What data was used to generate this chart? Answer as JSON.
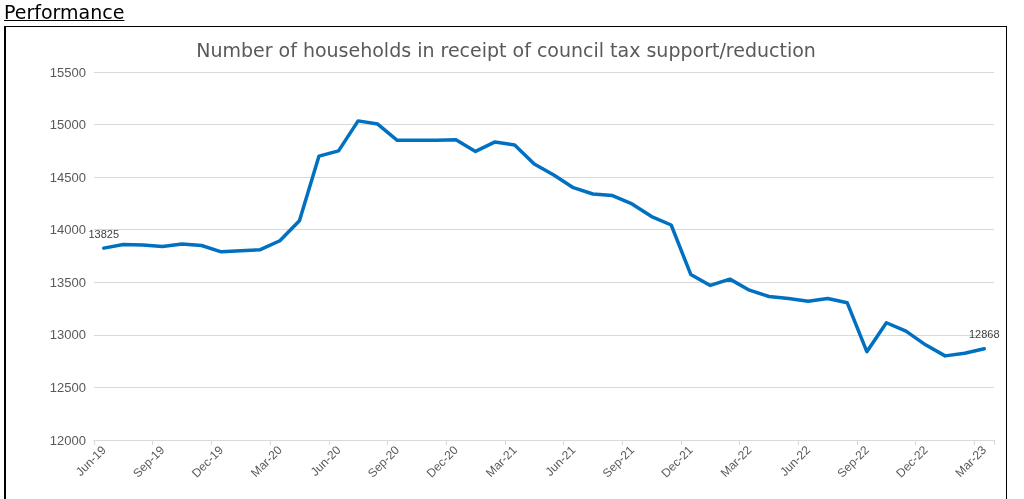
{
  "chart_data": {
    "type": "line",
    "title": "Number of households in receipt of council tax support/reduction",
    "annotations": [
      "Performance"
    ],
    "categories": [
      "Jun-19",
      null,
      null,
      "Sep-19",
      null,
      null,
      "Dec-19",
      null,
      null,
      "Mar-20",
      null,
      null,
      "Jun-20",
      null,
      null,
      "Sep-20",
      null,
      null,
      "Dec-20",
      null,
      null,
      "Mar-21",
      null,
      null,
      "Jun-21",
      null,
      null,
      "Sep-21",
      null,
      null,
      "Dec-21",
      null,
      null,
      "Mar-22",
      null,
      null,
      "Jun-22",
      null,
      null,
      "Sep-22",
      null,
      null,
      "Dec-22",
      null,
      null,
      "Mar-23"
    ],
    "series": [
      {
        "color": "#0070c0",
        "values": [
          13825,
          13860,
          13855,
          13840,
          13865,
          13850,
          13790,
          13800,
          13810,
          13895,
          14085,
          14700,
          14750,
          15035,
          15005,
          14850,
          14850,
          14850,
          14855,
          14745,
          14835,
          14805,
          14625,
          14520,
          14400,
          14340,
          14325,
          14245,
          14125,
          14045,
          13575,
          13470,
          13530,
          13425,
          13365,
          13345,
          13320,
          13345,
          13305,
          12840,
          13115,
          13035,
          12905,
          12800,
          12825,
          12868
        ],
        "value_labels": [
          "13825",
          null,
          null,
          null,
          null,
          null,
          null,
          null,
          null,
          null,
          null,
          null,
          null,
          null,
          null,
          null,
          null,
          null,
          null,
          null,
          null,
          null,
          null,
          null,
          null,
          null,
          null,
          null,
          null,
          null,
          null,
          null,
          null,
          null,
          null,
          null,
          null,
          null,
          null,
          null,
          null,
          null,
          null,
          null,
          null,
          "12868"
        ]
      }
    ],
    "ylim": [
      12000,
      15500
    ],
    "yticks": [
      12000,
      12500,
      13000,
      13500,
      14000,
      14500,
      15000,
      15500
    ],
    "grid": "y",
    "marker": "none",
    "line_style": "solid"
  }
}
